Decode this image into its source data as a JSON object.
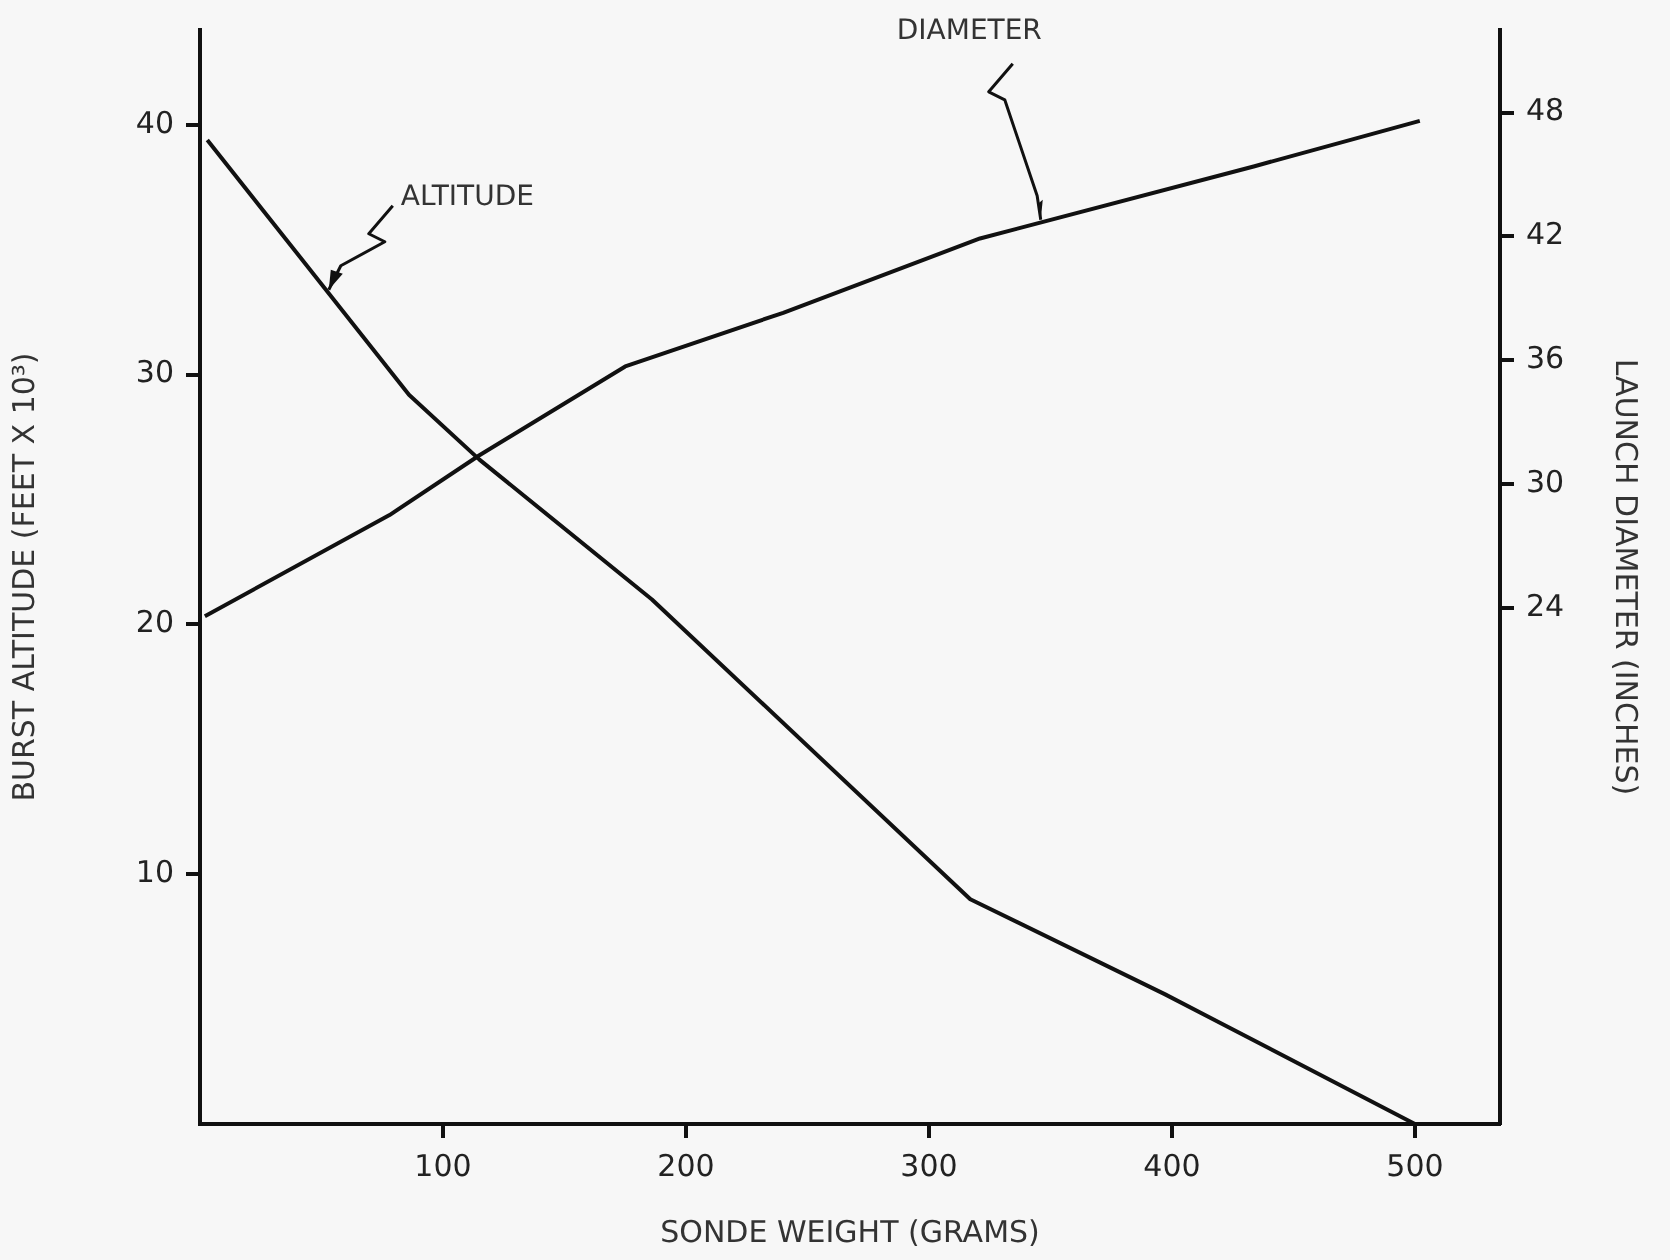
{
  "chart_data": {
    "type": "line",
    "xlabel": "SONDE WEIGHT (GRAMS)",
    "ylabel": "BURST ALTITUDE (FEET X 10³)",
    "y2label": "LAUNCH DIAMETER (INCHES)",
    "xlim": [
      0,
      535
    ],
    "xticks": [
      100,
      200,
      300,
      400,
      500
    ],
    "ylim": [
      0,
      43.8
    ],
    "yticks": [
      10,
      20,
      30,
      40
    ],
    "y2lim": [
      -1,
      52
    ],
    "y2ticks": [
      24,
      30,
      36,
      42,
      48
    ],
    "grid": false,
    "legend": false,
    "marker": "none",
    "line_style": "solid",
    "series": [
      {
        "color": "#111111",
        "x": [
          3,
          86,
          115,
          186,
          317,
          397,
          500
        ],
        "values": [
          39.4,
          29.2,
          26.6,
          21,
          9,
          5.2,
          0
        ]
      },
      {
        "color": "#111111",
        "axis": "y2",
        "x": [
          2,
          78,
          115,
          175,
          240,
          321,
          434,
          502
        ],
        "values": [
          23.6,
          28.5,
          31.4,
          35.7,
          38.3,
          41.9,
          45.4,
          47.6
        ]
      }
    ],
    "annotations": [
      {
        "text": "ALTITUDE",
        "x": 53,
        "y": 33.4
      },
      {
        "text": "DIAMETER",
        "x": 346,
        "y": 36.2
      }
    ]
  }
}
